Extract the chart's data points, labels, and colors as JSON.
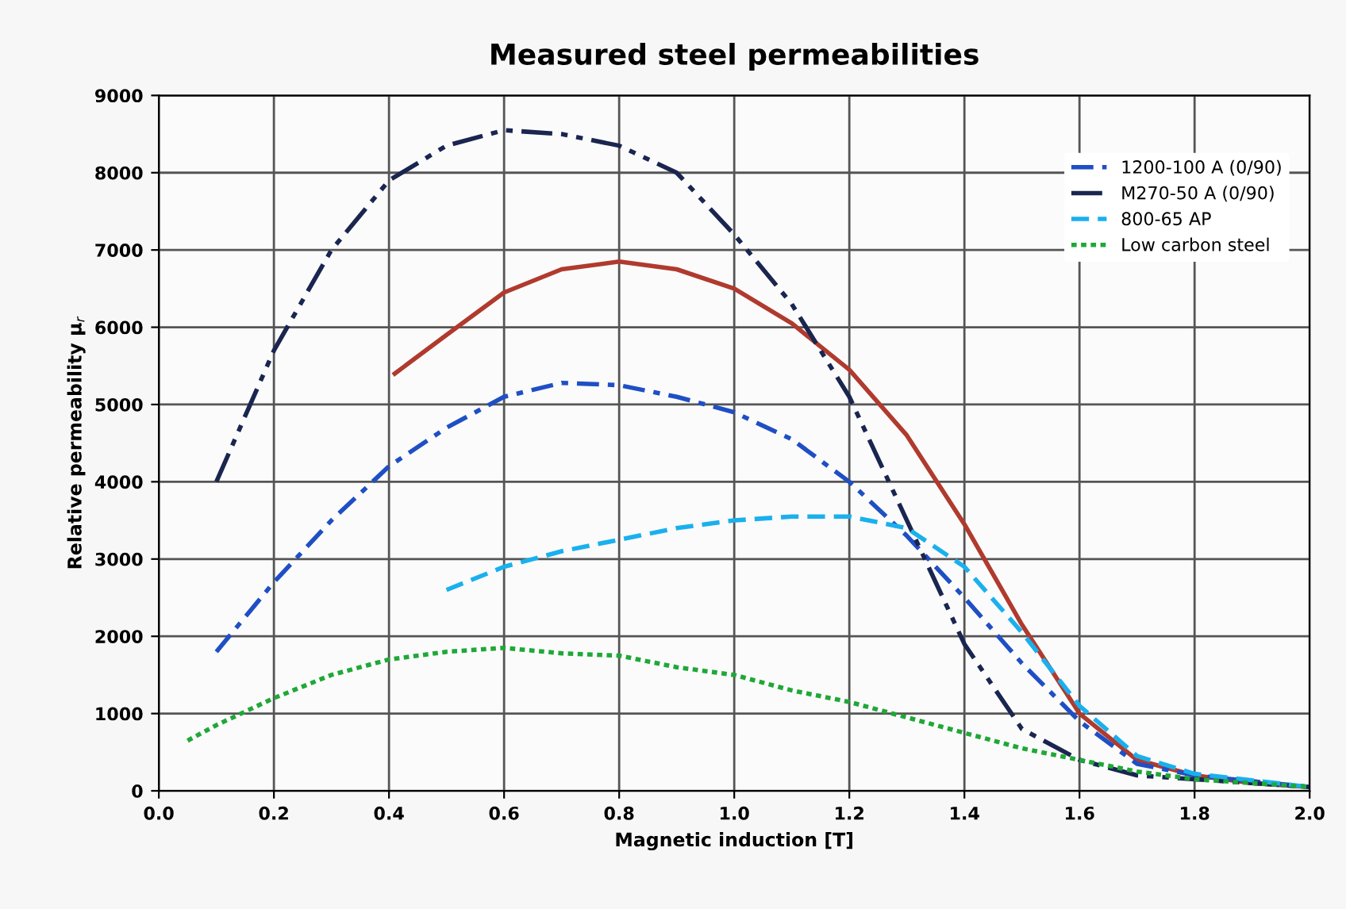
{
  "chart_data": {
    "type": "line",
    "title": "Measured steel permeabilities",
    "xlabel": "Magnetic induction [T]",
    "ylabel": "Relative permeability μ$_{r}$",
    "xlim": [
      0,
      2
    ],
    "xticks": [
      {
        "value": 0,
        "label": "0.0"
      },
      {
        "value": 0.2,
        "label": "0.2"
      },
      {
        "value": 0.4,
        "label": "0.4"
      },
      {
        "value": 0.6,
        "label": "0.6"
      },
      {
        "value": 0.8,
        "label": "0.8"
      },
      {
        "value": 1,
        "label": "1.0"
      },
      {
        "value": 1.2,
        "label": "1.2"
      },
      {
        "value": 1.4,
        "label": "1.4"
      },
      {
        "value": 1.6,
        "label": "1.6"
      },
      {
        "value": 1.8,
        "label": "1.8"
      },
      {
        "value": 2,
        "label": "2.0"
      }
    ],
    "ylim": [
      0,
      9000
    ],
    "yticks": [
      0,
      1000,
      2000,
      3000,
      4000,
      5000,
      6000,
      7000,
      8000,
      9000
    ],
    "grid": true,
    "legend": "top right",
    "marker": "none",
    "series": [
      {
        "color": "#b03a2e",
        "line_style": "solid",
        "x": [
          0.41,
          0.5,
          0.6,
          0.7,
          0.8,
          0.9,
          1.0,
          1.1,
          1.2,
          1.3,
          1.4,
          1.5,
          1.6,
          1.7,
          1.8,
          1.9,
          2.0
        ],
        "values": [
          5400,
          5900,
          6450,
          6750,
          6850,
          6750,
          6500,
          6050,
          5450,
          4600,
          3450,
          2150,
          1000,
          400,
          200,
          100,
          50
        ]
      },
      {
        "name": "1200-100 A (0/90)",
        "color": "#1f4fc4",
        "line_style": "dashdot",
        "x": [
          0.1,
          0.2,
          0.3,
          0.4,
          0.5,
          0.6,
          0.7,
          0.8,
          0.9,
          1.0,
          1.1,
          1.2,
          1.3,
          1.4,
          1.5,
          1.6,
          1.7,
          1.8,
          2.0
        ],
        "values": [
          1800,
          2700,
          3500,
          4200,
          4700,
          5100,
          5280,
          5250,
          5100,
          4900,
          4550,
          4000,
          3300,
          2500,
          1650,
          900,
          350,
          200,
          50
        ]
      },
      {
        "name": "M270-50 A (0/90)",
        "color": "#1a2550",
        "line_style": "dashdotdot",
        "x": [
          0.1,
          0.2,
          0.3,
          0.4,
          0.5,
          0.6,
          0.7,
          0.8,
          0.9,
          1.0,
          1.1,
          1.2,
          1.3,
          1.4,
          1.5,
          1.6,
          1.7,
          1.8,
          2.0
        ],
        "values": [
          4000,
          5700,
          7000,
          7900,
          8350,
          8550,
          8500,
          8350,
          8000,
          7200,
          6300,
          5100,
          3500,
          1900,
          800,
          400,
          200,
          150,
          50
        ]
      },
      {
        "name": "800-65 AP",
        "color": "#1ab0ee",
        "line_style": "dashed",
        "x": [
          0.5,
          0.6,
          0.7,
          0.8,
          0.9,
          1.0,
          1.1,
          1.2,
          1.3,
          1.4,
          1.5,
          1.6,
          1.7,
          1.8,
          2.0
        ],
        "values": [
          2600,
          2900,
          3100,
          3250,
          3400,
          3500,
          3550,
          3550,
          3400,
          2900,
          2050,
          1100,
          450,
          220,
          50
        ]
      },
      {
        "name": "Low carbon steel",
        "color": "#1fa838",
        "line_style": "dotted",
        "x": [
          0.05,
          0.1,
          0.2,
          0.3,
          0.4,
          0.5,
          0.6,
          0.7,
          0.8,
          0.9,
          1.0,
          1.1,
          1.2,
          1.3,
          1.4,
          1.5,
          1.6,
          1.7,
          1.8,
          1.9,
          2.0
        ],
        "values": [
          650,
          850,
          1200,
          1500,
          1700,
          1800,
          1850,
          1780,
          1750,
          1600,
          1500,
          1300,
          1150,
          950,
          750,
          550,
          400,
          250,
          150,
          100,
          50
        ]
      }
    ]
  }
}
